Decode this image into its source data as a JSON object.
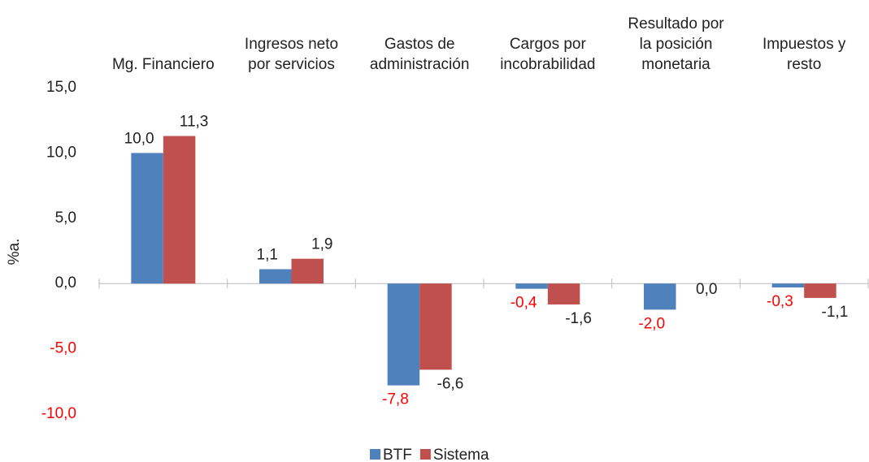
{
  "chart_data": {
    "type": "bar",
    "y_label": "%a.",
    "categories": [
      [
        "Mg. Financiero"
      ],
      [
        "Ingresos neto",
        "por servicios"
      ],
      [
        "Gastos de",
        "administración"
      ],
      [
        "Cargos por",
        "incobrabilidad"
      ],
      [
        "Resultado por",
        "la posición",
        "monetaria"
      ],
      [
        "Impuestos y",
        "resto"
      ]
    ],
    "series": [
      {
        "name": "BTF",
        "color": "#4f81bd",
        "negative_label_color": "#ff0000",
        "values": [
          10.0,
          1.1,
          -7.8,
          -0.4,
          -2.0,
          -0.3
        ],
        "value_labels": [
          "10,0",
          "1,1",
          "-7,8",
          "-0,4",
          "-2,0",
          "-0,3"
        ]
      },
      {
        "name": "Sistema",
        "color": "#c0504d",
        "negative_label_color": "#222222",
        "values": [
          11.3,
          1.9,
          -6.6,
          -1.6,
          0.0,
          -1.1
        ],
        "value_labels": [
          "11,3",
          "1,9",
          "-6,6",
          "-1,6",
          "0,0",
          "-1,1"
        ]
      }
    ],
    "ylim": [
      -11.5,
      15
    ],
    "yticks": [
      {
        "value": 15,
        "label": "15,0"
      },
      {
        "value": 10,
        "label": "10,0"
      },
      {
        "value": 5,
        "label": "5,0"
      },
      {
        "value": 0,
        "label": "0,0"
      },
      {
        "value": -5,
        "label": "-5,0"
      },
      {
        "value": -10,
        "label": "-10,0"
      }
    ],
    "negative_tick_color": "#ff0000",
    "grid": false,
    "legend": "bottom"
  }
}
